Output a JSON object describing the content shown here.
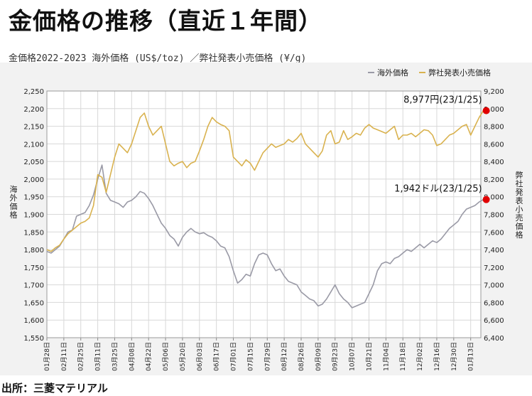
{
  "header": {
    "title": "金価格の推移（直近１年間）",
    "subtitle": "金価格2022-2023 海外価格 (US$/toz) ／弊社発表小売価格 (¥/g)"
  },
  "footer": {
    "source": "出所：三菱マテリアル"
  },
  "chart_data": {
    "type": "line",
    "x_tick_labels": [
      "01月28日",
      "02月11日",
      "02月25日",
      "03月11日",
      "03月25日",
      "04月08日",
      "04月22日",
      "05月06日",
      "05月20日",
      "06月03日",
      "06月17日",
      "07月01日",
      "07月15日",
      "07月29日",
      "08月12日",
      "08月26日",
      "09月09日",
      "09月23日",
      "10月07日",
      "10月21日",
      "11月04日",
      "11月18日",
      "12月02日",
      "12月16日",
      "12月30日",
      "01月13日"
    ],
    "ylabel_left": "海外価格",
    "ylabel_right": "弊社発表小売価格",
    "ylim_left": [
      1550,
      2250
    ],
    "ylim_right": [
      6400,
      9200
    ],
    "yticks_left": [
      "1,550",
      "1,600",
      "1,650",
      "1,700",
      "1,750",
      "1,800",
      "1,850",
      "1,900",
      "1,950",
      "2,000",
      "2,050",
      "2,100",
      "2,150",
      "2,200",
      "2,250"
    ],
    "yticks_right": [
      "6,400",
      "6,600",
      "6,800",
      "7,000",
      "7,200",
      "7,400",
      "7,600",
      "7,800",
      "8,000",
      "8,200",
      "8,400",
      "8,600",
      "8,800",
      "9,000",
      "9,200"
    ],
    "grid": true,
    "legend_position": "top-right",
    "series": [
      {
        "name": "海外価格",
        "axis": "left",
        "color": "#9a9aa6",
        "x_weeks": [
          0,
          0.5,
          1,
          1.5,
          2,
          2.5,
          3,
          3.5,
          4,
          4.5,
          5,
          5.5,
          6,
          6.5,
          7,
          7.5,
          8,
          8.5,
          9,
          9.5,
          10,
          10.5,
          11,
          11.5,
          12,
          12.5,
          13,
          13.5,
          14,
          14.5,
          15,
          15.5,
          16,
          16.5,
          17,
          17.5,
          18,
          18.5,
          19,
          19.5,
          20,
          20.5,
          21,
          21.5,
          22,
          22.5,
          23,
          23.5,
          24,
          24.5,
          25,
          25.5,
          26,
          26.5,
          27,
          27.5,
          28,
          28.5,
          29,
          29.5,
          30,
          30.5,
          31,
          31.5,
          32,
          32.5,
          33,
          33.5,
          34,
          34.5,
          35,
          35.5,
          36,
          36.5,
          37,
          37.5,
          38,
          38.5,
          39,
          39.5,
          40,
          40.5,
          41,
          41.5,
          42,
          42.5,
          43,
          43.5,
          44,
          44.5,
          45,
          45.5,
          46,
          46.5,
          47,
          47.5,
          48,
          48.5,
          49,
          49.5,
          50,
          50.5,
          51,
          51.5
        ],
        "values": [
          1795,
          1790,
          1800,
          1810,
          1830,
          1850,
          1855,
          1895,
          1900,
          1905,
          1925,
          1955,
          2000,
          2040,
          1960,
          1940,
          1935,
          1930,
          1920,
          1935,
          1940,
          1950,
          1965,
          1960,
          1945,
          1925,
          1900,
          1875,
          1860,
          1840,
          1830,
          1810,
          1835,
          1850,
          1860,
          1850,
          1845,
          1848,
          1840,
          1835,
          1825,
          1810,
          1805,
          1780,
          1740,
          1705,
          1715,
          1730,
          1725,
          1760,
          1785,
          1790,
          1785,
          1760,
          1740,
          1745,
          1725,
          1710,
          1705,
          1700,
          1680,
          1670,
          1660,
          1655,
          1640,
          1645,
          1660,
          1680,
          1700,
          1675,
          1660,
          1650,
          1635,
          1640,
          1645,
          1650,
          1675,
          1700,
          1740,
          1760,
          1765,
          1760,
          1775,
          1780,
          1790,
          1800,
          1795,
          1805,
          1815,
          1805,
          1815,
          1825,
          1820,
          1830,
          1845,
          1860,
          1870,
          1880,
          1900,
          1915,
          1920,
          1925,
          1935,
          1942
        ]
      },
      {
        "name": "弊社発表小売価格",
        "axis": "right",
        "color": "#d9b24f",
        "x_weeks": [
          0,
          0.5,
          1,
          1.5,
          2,
          2.5,
          3,
          3.5,
          4,
          4.5,
          5,
          5.5,
          6,
          6.5,
          7,
          7.5,
          8,
          8.5,
          9,
          9.5,
          10,
          10.5,
          11,
          11.5,
          12,
          12.5,
          13,
          13.5,
          14,
          14.5,
          15,
          15.5,
          16,
          16.5,
          17,
          17.5,
          18,
          18.5,
          19,
          19.5,
          20,
          20.5,
          21,
          21.5,
          22,
          22.5,
          23,
          23.5,
          24,
          24.5,
          25,
          25.5,
          26,
          26.5,
          27,
          27.5,
          28,
          28.5,
          29,
          29.5,
          30,
          30.5,
          31,
          31.5,
          32,
          32.5,
          33,
          33.5,
          34,
          34.5,
          35,
          35.5,
          36,
          36.5,
          37,
          37.5,
          38,
          38.5,
          39,
          39.5,
          40,
          40.5,
          41,
          41.5,
          42,
          42.5,
          43,
          43.5,
          44,
          44.5,
          45,
          45.5,
          46,
          46.5,
          47,
          47.5,
          48,
          48.5,
          49,
          49.5,
          50,
          50.5,
          51,
          51.5
        ],
        "values": [
          7400,
          7380,
          7420,
          7450,
          7520,
          7580,
          7620,
          7660,
          7700,
          7720,
          7760,
          7900,
          8250,
          8220,
          8050,
          8250,
          8450,
          8600,
          8550,
          8500,
          8600,
          8750,
          8900,
          8950,
          8800,
          8700,
          8750,
          8800,
          8600,
          8400,
          8350,
          8380,
          8400,
          8330,
          8380,
          8400,
          8520,
          8650,
          8800,
          8900,
          8850,
          8820,
          8800,
          8750,
          8450,
          8400,
          8350,
          8420,
          8380,
          8300,
          8400,
          8500,
          8550,
          8600,
          8560,
          8580,
          8600,
          8650,
          8620,
          8660,
          8720,
          8600,
          8550,
          8500,
          8450,
          8520,
          8700,
          8750,
          8600,
          8620,
          8750,
          8650,
          8680,
          8720,
          8700,
          8780,
          8820,
          8780,
          8760,
          8740,
          8720,
          8760,
          8800,
          8650,
          8700,
          8700,
          8720,
          8680,
          8720,
          8760,
          8750,
          8700,
          8580,
          8600,
          8650,
          8700,
          8720,
          8760,
          8800,
          8820,
          8700,
          8800,
          8900,
          8977
        ]
      }
    ],
    "annotations": [
      {
        "text": "8,977円(23/1/25)",
        "series": "弊社発表小売価格",
        "color": "#e00000"
      },
      {
        "text": "1,942ドル(23/1/25)",
        "series": "海外価格",
        "color": "#e00000"
      }
    ]
  }
}
